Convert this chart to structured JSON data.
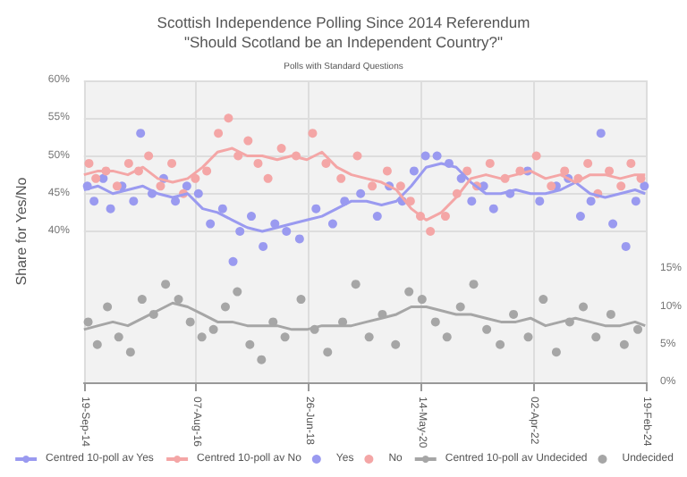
{
  "chart_data": {
    "type": "line",
    "title": "Scottish Independence Polling Since 2014 Referendum\n\"Should Scotland be an Independent Country?\"",
    "subtitle": "Polls with Standard Questions",
    "ylabel": "Share for Yes/No",
    "x": [
      "2014-09-19",
      "2014-12-15",
      "2015-03-15",
      "2015-06-15",
      "2015-09-15",
      "2015-12-15",
      "2016-03-15",
      "2016-06-15",
      "2016-09-15",
      "2016-12-15",
      "2017-03-15",
      "2017-06-15",
      "2017-09-15",
      "2017-12-15",
      "2018-03-15",
      "2018-06-15",
      "2018-09-15",
      "2018-12-15",
      "2019-03-15",
      "2019-06-15",
      "2019-09-15",
      "2019-12-15",
      "2020-03-15",
      "2020-06-15",
      "2020-09-15",
      "2020-12-15",
      "2021-03-15",
      "2021-06-15",
      "2021-09-15",
      "2021-12-15",
      "2022-03-15",
      "2022-06-15",
      "2022-09-15",
      "2022-12-15",
      "2023-03-15",
      "2023-06-15",
      "2023-09-15",
      "2023-12-15",
      "2024-02-15"
    ],
    "xlim": [
      "2014-09-19",
      "2024-02-19"
    ],
    "xticks": [
      {
        "value": "2014-09-19",
        "label": "19-Sep-14"
      },
      {
        "value": "2016-08-07",
        "label": "07-Aug-16"
      },
      {
        "value": "2018-06-26",
        "label": "26-Jun-18"
      },
      {
        "value": "2020-05-14",
        "label": "14-May-20"
      },
      {
        "value": "2022-04-02",
        "label": "02-Apr-22"
      },
      {
        "value": "2024-02-19",
        "label": "19-Feb-24"
      }
    ],
    "ylim": [
      20,
      60
    ],
    "yticks": [
      {
        "value": 40,
        "label": "40%"
      },
      {
        "value": 45,
        "label": "45%"
      },
      {
        "value": 50,
        "label": "50%"
      },
      {
        "value": 55,
        "label": "55%"
      },
      {
        "value": 60,
        "label": "60%"
      }
    ],
    "y2lim": [
      0,
      40
    ],
    "y2ticks": [
      {
        "value": 0,
        "label": "0%"
      },
      {
        "value": 5,
        "label": "5%"
      },
      {
        "value": 10,
        "label": "10%"
      },
      {
        "value": 15,
        "label": "15%"
      }
    ],
    "grid": true,
    "legend": "bottom",
    "series": [
      {
        "name": "Centred 10-poll av Yes",
        "marker": "none",
        "color": "#9a9af0",
        "values": [
          45.5,
          46,
          45,
          45.5,
          46,
          45,
          44.5,
          45,
          43,
          42.5,
          41.5,
          40.5,
          40,
          40.5,
          41,
          41.5,
          42,
          43,
          44,
          44,
          43.5,
          44,
          46,
          48.5,
          49,
          48.5,
          46.5,
          45,
          45,
          45.5,
          45,
          45,
          45.5,
          46.5,
          45,
          44.5,
          45,
          45.5,
          45
        ]
      },
      {
        "name": "Centred 10-poll av No",
        "marker": "none",
        "color": "#f4a6a6",
        "values": [
          47.5,
          48,
          48,
          47.5,
          48.5,
          47,
          46.5,
          47,
          48.5,
          50.5,
          51,
          50,
          50,
          49.5,
          50,
          49.5,
          50.5,
          48.5,
          47.5,
          47,
          46.5,
          45.5,
          43,
          41.5,
          42.5,
          44.5,
          47,
          47.5,
          47,
          47.5,
          48,
          47,
          47.5,
          46.5,
          47.5,
          47.5,
          47,
          47.5,
          47.5
        ]
      },
      {
        "name": "Yes",
        "type": "scatter",
        "marker": "circle",
        "color": "#9a9af0",
        "x": [
          "2014-10-10",
          "2014-11-20",
          "2015-01-15",
          "2015-03-01",
          "2015-05-10",
          "2015-07-20",
          "2015-09-01",
          "2015-11-10",
          "2016-01-20",
          "2016-04-01",
          "2016-06-10",
          "2016-08-20",
          "2016-11-01",
          "2017-01-15",
          "2017-03-20",
          "2017-05-01",
          "2017-07-10",
          "2017-09-20",
          "2017-12-01",
          "2018-02-10",
          "2018-05-01",
          "2018-08-10",
          "2018-11-20",
          "2019-02-01",
          "2019-05-10",
          "2019-08-20",
          "2019-11-01",
          "2020-01-20",
          "2020-04-01",
          "2020-06-10",
          "2020-08-20",
          "2020-11-01",
          "2021-01-15",
          "2021-03-20",
          "2021-06-01",
          "2021-08-01",
          "2021-11-10",
          "2022-02-25",
          "2022-05-10",
          "2022-08-20",
          "2022-11-01",
          "2023-01-15",
          "2023-03-20",
          "2023-05-20",
          "2023-08-01",
          "2023-10-20",
          "2023-12-20",
          "2024-02-10"
        ],
        "values": [
          46,
          44,
          47,
          43,
          46,
          44,
          53,
          45,
          47,
          44,
          46,
          45,
          41,
          43,
          36,
          40,
          42,
          38,
          41,
          40,
          39,
          43,
          41,
          44,
          45,
          42,
          46,
          44,
          48,
          50,
          50,
          49,
          47,
          44,
          46,
          43,
          45,
          48,
          44,
          46,
          47,
          42,
          44,
          53,
          41,
          38,
          44,
          46
        ]
      },
      {
        "name": "No",
        "type": "scatter",
        "marker": "circle",
        "color": "#f4a6a6",
        "x": [
          "2014-10-20",
          "2014-12-01",
          "2015-02-01",
          "2015-04-10",
          "2015-06-20",
          "2015-08-20",
          "2015-10-20",
          "2016-01-01",
          "2016-03-10",
          "2016-05-20",
          "2016-08-01",
          "2016-10-10",
          "2016-12-20",
          "2017-02-20",
          "2017-04-20",
          "2017-06-20",
          "2017-08-20",
          "2017-10-20",
          "2018-01-10",
          "2018-04-10",
          "2018-07-20",
          "2018-10-10",
          "2019-01-10",
          "2019-04-20",
          "2019-07-20",
          "2019-10-20",
          "2020-01-10",
          "2020-03-10",
          "2020-05-10",
          "2020-07-10",
          "2020-10-10",
          "2020-12-20",
          "2021-02-20",
          "2021-04-20",
          "2021-07-10",
          "2021-10-10",
          "2022-01-10",
          "2022-04-20",
          "2022-07-20",
          "2022-10-10",
          "2023-01-01",
          "2023-03-01",
          "2023-05-01",
          "2023-07-10",
          "2023-09-20",
          "2023-11-20",
          "2024-01-20"
        ],
        "values": [
          49,
          47,
          48,
          46,
          49,
          48,
          50,
          46,
          49,
          45,
          47,
          48,
          53,
          55,
          50,
          52,
          49,
          47,
          51,
          50,
          53,
          49,
          47,
          50,
          46,
          48,
          46,
          44,
          42,
          40,
          42,
          45,
          48,
          46,
          49,
          47,
          48,
          50,
          46,
          48,
          47,
          49,
          45,
          48,
          46,
          49,
          47
        ]
      },
      {
        "name": "Centred 10-poll av Undecided",
        "marker": "none",
        "axis": "y2",
        "color": "#a6a6a6",
        "values": [
          7,
          7.5,
          8,
          7.5,
          8.5,
          9.5,
          10.5,
          10,
          9,
          8,
          8,
          7.5,
          7.5,
          7.5,
          7,
          7,
          7.5,
          7.5,
          7.5,
          8,
          8.5,
          9,
          10,
          10,
          9.5,
          9,
          9,
          8.5,
          8,
          8,
          8.5,
          7.5,
          8,
          8.5,
          8,
          7.5,
          7.5,
          8,
          7.5
        ]
      },
      {
        "name": "Undecided",
        "type": "scatter",
        "marker": "circle",
        "axis": "y2",
        "color": "#a6a6a6",
        "x": [
          "2014-10-15",
          "2014-12-10",
          "2015-02-10",
          "2015-04-20",
          "2015-07-01",
          "2015-09-10",
          "2015-11-20",
          "2016-02-01",
          "2016-04-20",
          "2016-07-01",
          "2016-09-10",
          "2016-11-20",
          "2017-02-01",
          "2017-04-15",
          "2017-07-01",
          "2017-09-10",
          "2017-11-20",
          "2018-02-01",
          "2018-05-10",
          "2018-08-01",
          "2018-10-20",
          "2019-01-20",
          "2019-04-10",
          "2019-07-01",
          "2019-09-20",
          "2019-12-10",
          "2020-03-01",
          "2020-05-20",
          "2020-08-10",
          "2020-10-20",
          "2021-01-10",
          "2021-04-01",
          "2021-06-20",
          "2021-09-10",
          "2021-12-01",
          "2022-03-01",
          "2022-06-01",
          "2022-08-20",
          "2022-11-10",
          "2023-02-01",
          "2023-04-20",
          "2023-07-20",
          "2023-10-10",
          "2024-01-01"
        ],
        "values": [
          8,
          5,
          10,
          6,
          4,
          11,
          9,
          13,
          11,
          8,
          6,
          7,
          10,
          12,
          5,
          3,
          8,
          6,
          11,
          7,
          4,
          8,
          13,
          6,
          9,
          5,
          12,
          11,
          8,
          6,
          10,
          13,
          7,
          5,
          9,
          6,
          11,
          4,
          8,
          10,
          6,
          9,
          5,
          7
        ]
      }
    ]
  }
}
